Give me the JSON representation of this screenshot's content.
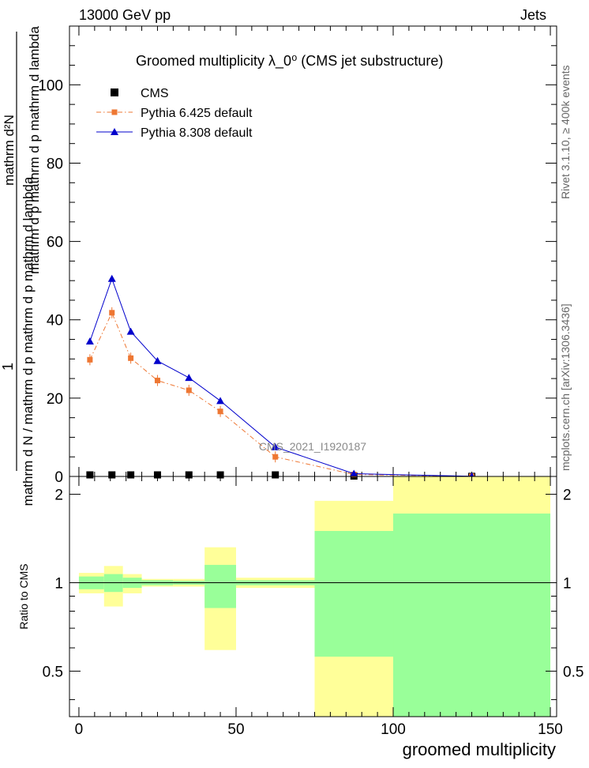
{
  "header": {
    "left": "13000 GeV pp",
    "right": "Jets"
  },
  "side_labels": {
    "rivet": "Rivet 3.1.10, ≥ 400k events",
    "mcplots": "mcplots.cern.ch [arXiv:1306.3436]"
  },
  "watermark": "CMS_2021_I1920187",
  "chart_data": [
    {
      "type": "line",
      "panel": "main",
      "title": "Groomed multiplicity  λ_0⁰ (CMS jet substructure)",
      "ylabel_num": "1",
      "ylabel_den": "mathrm d N / mathrm d p  mathrm d p  mathrm d lambda",
      "ylabel_full": "1 / (mathrm d N / mathrm d p_T) · mathrm d²N / (mathrm d p_T mathrm d lambda)",
      "ylim": [
        0,
        115
      ],
      "yticks": [
        0,
        20,
        40,
        60,
        80,
        100
      ],
      "xlim": [
        -3,
        152
      ],
      "legend_position": "top-left",
      "series": [
        {
          "name": "CMS",
          "color": "#000000",
          "marker": "square",
          "x": [
            3.5,
            10.5,
            16.5,
            25,
            35,
            45,
            62.5,
            87.5,
            125
          ],
          "values": [
            0.4,
            0.4,
            0.4,
            0.4,
            0.4,
            0.4,
            0.4,
            0.1,
            0.02
          ]
        },
        {
          "name": "Pythia 6.425 default",
          "color": "#ee7733",
          "marker": "square",
          "x": [
            3.5,
            10.5,
            16.5,
            25,
            35,
            45,
            62.5,
            87.5,
            125
          ],
          "values": [
            29.8,
            41.8,
            30.2,
            24.5,
            22.0,
            16.6,
            5.0,
            0.5,
            0.05
          ]
        },
        {
          "name": "Pythia 8.308 default",
          "color": "#0000cc",
          "marker": "triangle",
          "x": [
            3.5,
            10.5,
            16.5,
            25,
            35,
            45,
            62.5,
            87.5,
            125
          ],
          "values": [
            34.5,
            50.5,
            37.0,
            29.5,
            25.2,
            19.3,
            7.5,
            0.7,
            0.05
          ]
        }
      ]
    },
    {
      "type": "area",
      "panel": "ratio",
      "ylabel": "Ratio to CMS",
      "xlabel": "groomed multiplicity",
      "ylim": [
        0.35,
        2.3
      ],
      "yticks": [
        0.5,
        1,
        2
      ],
      "xticks": [
        0,
        50,
        100,
        150
      ],
      "xlim": [
        -3,
        152
      ],
      "bins": [
        {
          "lo": 0,
          "hi": 8,
          "inner": [
            0.95,
            1.05
          ],
          "outer": [
            0.92,
            1.08
          ]
        },
        {
          "lo": 8,
          "hi": 14,
          "inner": [
            0.93,
            1.07
          ],
          "outer": [
            0.83,
            1.14
          ]
        },
        {
          "lo": 14,
          "hi": 20,
          "inner": [
            0.96,
            1.04
          ],
          "outer": [
            0.92,
            1.07
          ]
        },
        {
          "lo": 20,
          "hi": 30,
          "inner": [
            0.98,
            1.02
          ],
          "outer": [
            0.97,
            1.03
          ]
        },
        {
          "lo": 30,
          "hi": 40,
          "inner": [
            0.985,
            1.015
          ],
          "outer": [
            0.97,
            1.03
          ]
        },
        {
          "lo": 40,
          "hi": 50,
          "inner": [
            0.82,
            1.15
          ],
          "outer": [
            0.59,
            1.32
          ]
        },
        {
          "lo": 50,
          "hi": 75,
          "inner": [
            0.98,
            1.02
          ],
          "outer": [
            0.96,
            1.04
          ]
        },
        {
          "lo": 75,
          "hi": 100,
          "inner": [
            0.56,
            1.5
          ],
          "outer": [
            0.35,
            1.9
          ]
        },
        {
          "lo": 100,
          "hi": 150,
          "inner": [
            0.35,
            1.72
          ],
          "outer": [
            0.35,
            2.3
          ]
        }
      ]
    }
  ],
  "colors": {
    "inner_band": "#99ff99",
    "outer_band": "#ffff99"
  }
}
